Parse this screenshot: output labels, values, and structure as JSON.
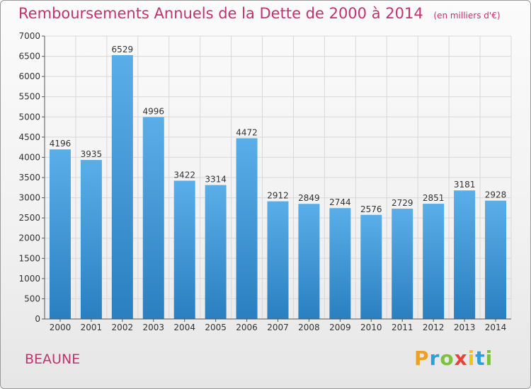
{
  "title": "Remboursements Annuels de la Dette de 2000 à 2014",
  "subtitle": "(en milliers d'€)",
  "city": "BEAUNE",
  "logo": {
    "letters": [
      "P",
      "r",
      "o",
      "x",
      "i",
      "t",
      "i"
    ],
    "colors": [
      "#f0a020",
      "#2f9fd8",
      "#7cc242",
      "#e8433a",
      "#f2c21a",
      "#2f9fd8",
      "#7cc242"
    ]
  },
  "colors": {
    "bar_top": "#5aaee8",
    "bar_bottom": "#2a7fc0",
    "title": "#c3316e",
    "grid": "#d8d8d8"
  },
  "chart_data": {
    "type": "bar",
    "title": "Remboursements Annuels de la Dette de 2000 à 2014",
    "subtitle": "(en milliers d'€)",
    "xlabel": "",
    "ylabel": "",
    "categories": [
      "2000",
      "2001",
      "2002",
      "2003",
      "2004",
      "2005",
      "2006",
      "2007",
      "2008",
      "2009",
      "2010",
      "2011",
      "2012",
      "2013",
      "2014"
    ],
    "values": [
      4196,
      3935,
      6529,
      4996,
      3422,
      3314,
      4472,
      2912,
      2849,
      2744,
      2576,
      2729,
      2851,
      3181,
      2928
    ],
    "ylim": [
      0,
      7000
    ],
    "yticks": [
      0,
      500,
      1000,
      1500,
      2000,
      2500,
      3000,
      3500,
      4000,
      4500,
      5000,
      5500,
      6000,
      6500,
      7000
    ],
    "grid": true
  }
}
